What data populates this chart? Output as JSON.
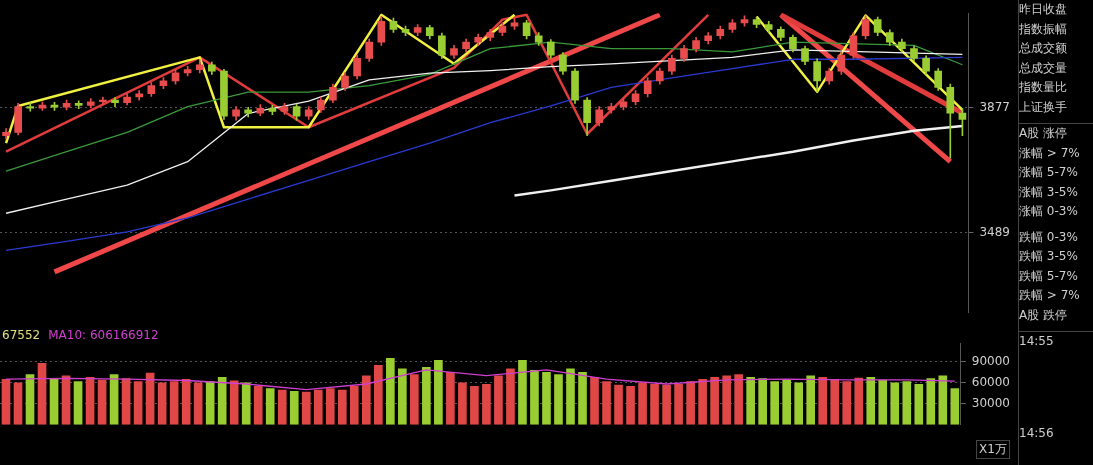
{
  "chart_data": [
    {
      "type": "candlestick",
      "categories": [
        null,
        null,
        null,
        null,
        null,
        null,
        null,
        null,
        null,
        null,
        null,
        null,
        null,
        null,
        null,
        null,
        null,
        null,
        null,
        null,
        null,
        null,
        null,
        null,
        null,
        null,
        null,
        null,
        null,
        null,
        null,
        null,
        null,
        null,
        null,
        null,
        null,
        null,
        null,
        null,
        null,
        null,
        null,
        null,
        null,
        null,
        null,
        null,
        null,
        null,
        null,
        null,
        null,
        null,
        null,
        null,
        null,
        null,
        null,
        null,
        null,
        null,
        null,
        null,
        null,
        null,
        null,
        null,
        null,
        null,
        null,
        null,
        null,
        null,
        null,
        null,
        null,
        null,
        null,
        null
      ],
      "ohlc": [
        [
          3790,
          3812,
          3780,
          3800
        ],
        [
          3800,
          3890,
          3792,
          3880
        ],
        [
          3880,
          3892,
          3866,
          3875
        ],
        [
          3875,
          3895,
          3868,
          3885
        ],
        [
          3885,
          3893,
          3868,
          3878
        ],
        [
          3878,
          3900,
          3870,
          3890
        ],
        [
          3890,
          3898,
          3874,
          3884
        ],
        [
          3884,
          3905,
          3876,
          3895
        ],
        [
          3895,
          3910,
          3886,
          3900
        ],
        [
          3900,
          3908,
          3880,
          3892
        ],
        [
          3892,
          3920,
          3885,
          3910
        ],
        [
          3910,
          3930,
          3900,
          3920
        ],
        [
          3920,
          3955,
          3912,
          3945
        ],
        [
          3945,
          3970,
          3936,
          3960
        ],
        [
          3960,
          3995,
          3950,
          3985
        ],
        [
          3985,
          4005,
          3975,
          3995
        ],
        [
          3995,
          4025,
          3985,
          4010
        ],
        [
          4010,
          4018,
          3980,
          3990
        ],
        [
          3990,
          3996,
          3840,
          3850
        ],
        [
          3850,
          3880,
          3838,
          3870
        ],
        [
          3870,
          3878,
          3848,
          3860
        ],
        [
          3860,
          3886,
          3852,
          3875
        ],
        [
          3875,
          3884,
          3855,
          3865
        ],
        [
          3865,
          3890,
          3856,
          3880
        ],
        [
          3880,
          3888,
          3838,
          3850
        ],
        [
          3850,
          3880,
          3840,
          3870
        ],
        [
          3870,
          3910,
          3862,
          3900
        ],
        [
          3900,
          3950,
          3892,
          3940
        ],
        [
          3940,
          3985,
          3930,
          3975
        ],
        [
          3975,
          4040,
          3966,
          4030
        ],
        [
          4030,
          4090,
          4020,
          4080
        ],
        [
          4080,
          4160,
          4070,
          4145
        ],
        [
          4145,
          4155,
          4110,
          4120
        ],
        [
          4120,
          4130,
          4100,
          4110
        ],
        [
          4110,
          4135,
          4100,
          4125
        ],
        [
          4125,
          4132,
          4090,
          4100
        ],
        [
          4100,
          4108,
          4030,
          4040
        ],
        [
          4040,
          4070,
          4030,
          4060
        ],
        [
          4060,
          4090,
          4050,
          4080
        ],
        [
          4080,
          4105,
          4070,
          4095
        ],
        [
          4095,
          4120,
          4085,
          4110
        ],
        [
          4110,
          4140,
          4100,
          4130
        ],
        [
          4130,
          4155,
          4120,
          4140
        ],
        [
          4140,
          4148,
          4090,
          4100
        ],
        [
          4100,
          4110,
          4070,
          4080
        ],
        [
          4080,
          4088,
          4030,
          4040
        ],
        [
          4040,
          4048,
          3980,
          3990
        ],
        [
          3990,
          3998,
          3890,
          3900
        ],
        [
          3900,
          3908,
          3790,
          3830
        ],
        [
          3830,
          3880,
          3820,
          3870
        ],
        [
          3870,
          3890,
          3860,
          3880
        ],
        [
          3880,
          3905,
          3870,
          3895
        ],
        [
          3895,
          3930,
          3886,
          3920
        ],
        [
          3920,
          3970,
          3910,
          3960
        ],
        [
          3960,
          4000,
          3950,
          3990
        ],
        [
          3990,
          4040,
          3980,
          4030
        ],
        [
          4030,
          4070,
          4020,
          4060
        ],
        [
          4060,
          4095,
          4050,
          4085
        ],
        [
          4085,
          4110,
          4075,
          4100
        ],
        [
          4100,
          4130,
          4090,
          4120
        ],
        [
          4120,
          4150,
          4110,
          4140
        ],
        [
          4140,
          4162,
          4130,
          4150
        ],
        [
          4150,
          4158,
          4125,
          4135
        ],
        [
          4135,
          4145,
          4110,
          4120
        ],
        [
          4120,
          4128,
          4085,
          4095
        ],
        [
          4095,
          4102,
          4050,
          4060
        ],
        [
          4060,
          4068,
          4010,
          4020
        ],
        [
          4020,
          4028,
          3925,
          3960
        ],
        [
          3960,
          4000,
          3950,
          3990
        ],
        [
          3990,
          4050,
          3980,
          4040
        ],
        [
          4040,
          4110,
          4030,
          4100
        ],
        [
          4100,
          4162,
          4090,
          4150
        ],
        [
          4150,
          4158,
          4100,
          4110
        ],
        [
          4110,
          4118,
          4070,
          4080
        ],
        [
          4080,
          4090,
          4050,
          4060
        ],
        [
          4060,
          4068,
          4020,
          4030
        ],
        [
          4030,
          4038,
          3980,
          3990
        ],
        [
          3990,
          3998,
          3930,
          3940
        ],
        [
          3940,
          3950,
          3720,
          3860
        ],
        [
          3860,
          3875,
          3790,
          3840
        ]
      ],
      "series": [
        {
          "type": "line",
          "color": "#f0f0f0",
          "values": [
            3549,
            null,
            null,
            null,
            null,
            3593,
            null,
            null,
            null,
            null,
            3636,
            null,
            null,
            null,
            null,
            3709,
            null,
            null,
            null,
            null,
            3859,
            null,
            null,
            null,
            null,
            3897,
            null,
            null,
            null,
            null,
            3963,
            null,
            null,
            null,
            null,
            3984,
            null,
            null,
            null,
            null,
            3992,
            null,
            null,
            null,
            null,
            4004,
            null,
            null,
            null,
            null,
            4013,
            null,
            null,
            null,
            null,
            null,
            null,
            null,
            null,
            null,
            4033,
            null,
            null,
            null,
            null,
            4056,
            null,
            null,
            null,
            null,
            null,
            null,
            null,
            null,
            null,
            null,
            null,
            null,
            null,
            4042
          ]
        },
        {
          "type": "line",
          "color": "#2a3ad0",
          "values": [
            3434,
            null,
            null,
            null,
            null,
            3462,
            null,
            null,
            null,
            null,
            3491,
            null,
            null,
            null,
            null,
            3535,
            null,
            null,
            null,
            null,
            3593,
            null,
            null,
            null,
            null,
            3651,
            null,
            null,
            null,
            null,
            3709,
            null,
            null,
            null,
            null,
            3767,
            null,
            null,
            null,
            null,
            3830,
            null,
            null,
            null,
            null,
            3882,
            null,
            null,
            null,
            null,
            3940,
            null,
            null,
            null,
            null,
            3969,
            null,
            null,
            null,
            null,
            3998,
            null,
            null,
            null,
            null,
            4027,
            null,
            null,
            null,
            null,
            4027,
            null,
            null,
            null,
            null,
            null,
            null,
            null,
            null,
            4033
          ]
        },
        {
          "type": "line",
          "color": "#3a9a3a",
          "values": [
            3680,
            null,
            null,
            null,
            null,
            3740,
            null,
            null,
            null,
            null,
            3800,
            null,
            null,
            null,
            null,
            3880,
            null,
            null,
            null,
            null,
            3925,
            null,
            null,
            null,
            null,
            3925,
            null,
            null,
            null,
            null,
            3945,
            null,
            null,
            null,
            null,
            3980,
            null,
            null,
            null,
            null,
            4060,
            null,
            null,
            null,
            null,
            4080,
            null,
            null,
            null,
            null,
            4060,
            null,
            null,
            null,
            null,
            4060,
            null,
            null,
            null,
            null,
            4050,
            null,
            null,
            null,
            null,
            4080,
            null,
            null,
            null,
            null,
            null,
            null,
            null,
            null,
            null,
            4070,
            null,
            null,
            null,
            4010
          ]
        },
        {
          "type": "line",
          "color": "#f0f0f0",
          "values": [
            null,
            null,
            null,
            null,
            null,
            null,
            null,
            null,
            null,
            null,
            null,
            null,
            null,
            null,
            null,
            null,
            null,
            null,
            null,
            null,
            null,
            null,
            null,
            null,
            null,
            null,
            null,
            null,
            null,
            null,
            null,
            null,
            null,
            null,
            null,
            null,
            null,
            null,
            null,
            null,
            null,
            null,
            3604,
            null,
            null,
            3620,
            null,
            null,
            null,
            null,
            3650,
            null,
            null,
            null,
            null,
            3680,
            null,
            null,
            null,
            null,
            3710,
            null,
            null,
            null,
            null,
            3740,
            null,
            null,
            null,
            null,
            3775,
            null,
            null,
            null,
            null,
            3805,
            null,
            null,
            null,
            3820
          ]
        },
        {
          "type": "line",
          "color": "#f0f040",
          "values": [
            3767,
            3882,
            null,
            null,
            null,
            null,
            null,
            null,
            null,
            null,
            null,
            null,
            null,
            null,
            null,
            null,
            4033,
            null,
            3816,
            null,
            null,
            null,
            null,
            null,
            null,
            3816,
            null,
            null,
            null,
            null,
            null,
            4165,
            null,
            null,
            null,
            null,
            null,
            4013,
            null,
            null,
            null,
            null,
            4165,
            null,
            null,
            null,
            null,
            null,
            null,
            null,
            null,
            null,
            null,
            null,
            null,
            null,
            null,
            null,
            null,
            null,
            null,
            null,
            null,
            null,
            null,
            null,
            null,
            null,
            null,
            null,
            null,
            null,
            null,
            null,
            null,
            null,
            null,
            null,
            null,
            null
          ]
        },
        {
          "type": "line",
          "color": "#f0f040",
          "values": [
            null,
            null,
            null,
            null,
            null,
            null,
            null,
            null,
            null,
            null,
            null,
            null,
            null,
            null,
            null,
            null,
            null,
            null,
            null,
            null,
            null,
            null,
            null,
            null,
            null,
            null,
            null,
            null,
            null,
            null,
            null,
            null,
            null,
            null,
            null,
            null,
            null,
            null,
            null,
            null,
            null,
            null,
            null,
            null,
            null,
            null,
            null,
            null,
            null,
            null,
            null,
            null,
            null,
            null,
            null,
            null,
            null,
            null,
            null,
            null,
            null,
            null,
            4160,
            null,
            null,
            null,
            null,
            3926,
            null,
            null,
            null,
            4163,
            null,
            null,
            null,
            null,
            null,
            null,
            null,
            3870
          ]
        },
        {
          "type": "line",
          "color": "#e03c3c",
          "values": [
            3740,
            null,
            null,
            null,
            null,
            null,
            null,
            null,
            null,
            null,
            null,
            null,
            null,
            null,
            null,
            null,
            4033,
            null,
            null,
            null,
            null,
            null,
            null,
            null,
            null,
            3816,
            null,
            null,
            null,
            null,
            null,
            null,
            null,
            null,
            null,
            null,
            null,
            4000,
            null,
            null,
            null,
            4150,
            null,
            4165,
            null,
            null,
            null,
            null,
            3795,
            null,
            null,
            null,
            null,
            null,
            null,
            null,
            null,
            null,
            4165,
            null,
            null,
            null,
            null,
            null,
            null,
            null,
            null,
            null,
            null,
            null,
            null,
            null,
            null,
            null,
            null,
            null,
            null,
            null,
            null,
            null
          ]
        },
        {
          "type": "line",
          "color": "#e03c3c",
          "values": [
            null,
            null,
            null,
            null,
            null,
            null,
            null,
            null,
            null,
            null,
            null,
            null,
            null,
            null,
            null,
            null,
            null,
            null,
            null,
            null,
            null,
            null,
            null,
            null,
            null,
            null,
            null,
            null,
            null,
            null,
            null,
            null,
            null,
            null,
            null,
            null,
            null,
            null,
            null,
            null,
            null,
            null,
            null,
            null,
            null,
            null,
            null,
            null,
            null,
            null,
            null,
            null,
            null,
            null,
            null,
            null,
            null,
            null,
            null,
            null,
            null,
            null,
            null,
            null,
            4165,
            null,
            null,
            null,
            null,
            null,
            null,
            null,
            null,
            null,
            null,
            null,
            null,
            null,
            null,
            3860
          ]
        },
        {
          "type": "line",
          "color": "#f04848",
          "values": [
            null,
            null,
            null,
            null,
            3367,
            null,
            null,
            null,
            null,
            null,
            null,
            null,
            null,
            null,
            null,
            null,
            null,
            null,
            null,
            null,
            null,
            null,
            null,
            null,
            null,
            null,
            null,
            null,
            null,
            null,
            null,
            null,
            null,
            null,
            null,
            null,
            null,
            null,
            null,
            null,
            null,
            null,
            null,
            null,
            null,
            null,
            null,
            null,
            null,
            null,
            null,
            null,
            null,
            null,
            4165,
            null,
            null,
            null,
            null,
            null,
            null,
            null,
            null,
            null,
            null,
            null,
            null,
            null,
            null,
            null,
            null,
            null,
            null,
            null,
            null,
            null,
            null,
            null,
            null,
            null
          ]
        },
        {
          "type": "line",
          "color": "#f04848",
          "values": [
            null,
            null,
            null,
            null,
            null,
            null,
            null,
            null,
            null,
            null,
            null,
            null,
            null,
            null,
            null,
            null,
            null,
            null,
            null,
            null,
            null,
            null,
            null,
            null,
            null,
            null,
            null,
            null,
            null,
            null,
            null,
            null,
            null,
            null,
            null,
            null,
            null,
            null,
            null,
            null,
            null,
            null,
            null,
            null,
            null,
            null,
            null,
            null,
            null,
            null,
            null,
            null,
            null,
            null,
            null,
            null,
            null,
            null,
            null,
            null,
            null,
            null,
            null,
            null,
            4165,
            null,
            null,
            null,
            null,
            null,
            null,
            null,
            null,
            null,
            null,
            null,
            null,
            null,
            3709,
            null
          ]
        }
      ],
      "ylim": [
        3240,
        4170
      ],
      "yticks": [
        3489,
        3877
      ],
      "grid": "y",
      "tick_labels": "y"
    },
    {
      "type": "bar",
      "categories": [
        null,
        null,
        null,
        null,
        null,
        null,
        null,
        null,
        null,
        null,
        null,
        null,
        null,
        null,
        null,
        null,
        null,
        null,
        null,
        null,
        null,
        null,
        null,
        null,
        null,
        null,
        null,
        null,
        null,
        null,
        null,
        null,
        null,
        null,
        null,
        null,
        null,
        null,
        null,
        null,
        null,
        null,
        null,
        null,
        null,
        null,
        null,
        null,
        null,
        null,
        null,
        null,
        null,
        null,
        null,
        null,
        null,
        null,
        null,
        null,
        null,
        null,
        null,
        null,
        null,
        null,
        null,
        null,
        null,
        null,
        null,
        null,
        null,
        null,
        null,
        null,
        null,
        null,
        null,
        null
      ],
      "values": [
        65000,
        60000,
        72000,
        88000,
        66000,
        70000,
        62000,
        68000,
        64000,
        72000,
        66000,
        62000,
        74000,
        60000,
        62000,
        65000,
        60000,
        62000,
        68000,
        63000,
        60000,
        55000,
        52000,
        50000,
        48000,
        47000,
        50000,
        52000,
        50000,
        55000,
        70000,
        85000,
        95000,
        80000,
        72000,
        82000,
        92000,
        75000,
        60000,
        55000,
        58000,
        70000,
        80000,
        92000,
        78000,
        75000,
        72000,
        80000,
        75000,
        68000,
        62000,
        57000,
        55000,
        60000,
        58000,
        57000,
        58000,
        62000,
        65000,
        68000,
        70000,
        72000,
        68000,
        66000,
        62000,
        65000,
        60000,
        70000,
        68000,
        65000,
        62000,
        67000,
        68000,
        64000,
        60000,
        62000,
        58000,
        66000,
        70000,
        52000
      ],
      "colors": [
        "#e04848",
        "#e04848",
        "#9acd32",
        "#e04848",
        "#9acd32",
        "#e04848",
        "#9acd32",
        "#e04848",
        "#e04848",
        "#9acd32",
        "#e04848",
        "#e04848",
        "#e04848",
        "#e04848",
        "#e04848",
        "#e04848",
        "#e04848",
        "#9acd32",
        "#9acd32",
        "#e04848",
        "#9acd32",
        "#e04848",
        "#9acd32",
        "#e04848",
        "#9acd32",
        "#e04848",
        "#e04848",
        "#e04848",
        "#e04848",
        "#e04848",
        "#e04848",
        "#e04848",
        "#9acd32",
        "#9acd32",
        "#e04848",
        "#9acd32",
        "#9acd32",
        "#e04848",
        "#e04848",
        "#e04848",
        "#e04848",
        "#e04848",
        "#e04848",
        "#9acd32",
        "#9acd32",
        "#9acd32",
        "#9acd32",
        "#9acd32",
        "#9acd32",
        "#e04848",
        "#e04848",
        "#e04848",
        "#e04848",
        "#e04848",
        "#e04848",
        "#e04848",
        "#e04848",
        "#e04848",
        "#e04848",
        "#e04848",
        "#e04848",
        "#e04848",
        "#9acd32",
        "#9acd32",
        "#9acd32",
        "#9acd32",
        "#9acd32",
        "#9acd32",
        "#e04848",
        "#e04848",
        "#e04848",
        "#e04848",
        "#9acd32",
        "#9acd32",
        "#9acd32",
        "#9acd32",
        "#9acd32",
        "#9acd32",
        "#9acd32",
        "#9acd32"
      ],
      "series": [
        {
          "type": "line",
          "color": "#d040d0",
          "values": [
            65000,
            null,
            null,
            null,
            null,
            66000,
            null,
            null,
            null,
            null,
            65000,
            null,
            null,
            null,
            null,
            63000,
            null,
            null,
            null,
            null,
            58000,
            null,
            null,
            null,
            null,
            50000,
            null,
            null,
            null,
            null,
            58000,
            null,
            null,
            null,
            null,
            78000,
            null,
            null,
            null,
            null,
            70000,
            null,
            null,
            null,
            null,
            78000,
            null,
            null,
            null,
            null,
            65000,
            null,
            null,
            null,
            null,
            58000,
            null,
            null,
            null,
            null,
            64000,
            null,
            null,
            null,
            null,
            65000,
            null,
            null,
            null,
            null,
            64000,
            null,
            null,
            null,
            null,
            64000,
            null,
            null,
            null,
            62000
          ]
        }
      ],
      "ylim": [
        0,
        116000
      ],
      "yticks": [
        30000,
        60000,
        90000
      ],
      "ylabel": "X1万",
      "grid": "y",
      "tick_labels": "y",
      "annotations": [
        "67552",
        "MA10: 606166912"
      ]
    },
    {
      "type": "other",
      "annotations": [
        "昨日收盘",
        "指数振幅",
        "总成交额",
        "总成交量",
        "指数量比",
        "上证换手",
        "A股 涨停",
        "涨幅 > 7%",
        "涨幅 5-7%",
        "涨幅 3-5%",
        "涨幅 0-3%",
        "跌幅 0-3%",
        "跌幅 3-5%",
        "跌幅 5-7%",
        "跌幅 > 7%",
        "A股 跌停",
        "14:55",
        "14:56"
      ]
    }
  ]
}
